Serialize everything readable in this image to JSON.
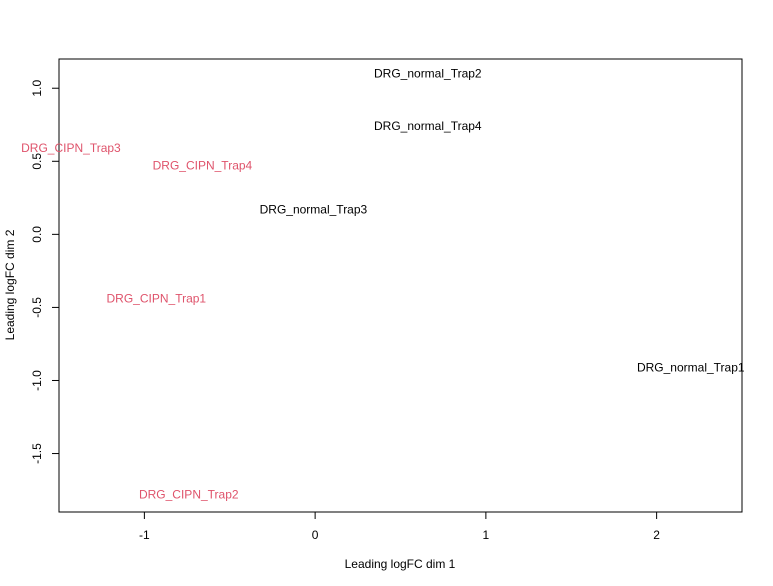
{
  "chart_data": {
    "type": "scatter",
    "title": "",
    "xlabel": "Leading logFC dim 1",
    "ylabel": "Leading logFC dim 2",
    "xlim": [
      -1.5,
      2.5
    ],
    "ylim": [
      -1.9,
      1.2
    ],
    "xticks": [
      -1,
      0,
      1,
      2
    ],
    "yticks": [
      -1.5,
      -1.0,
      -0.5,
      0.0,
      0.5,
      1.0
    ],
    "xtick_labels": [
      "-1",
      "0",
      "1",
      "2"
    ],
    "ytick_labels": [
      "-1.5",
      "-1.0",
      "-0.5",
      "0.0",
      "0.5",
      "1.0"
    ],
    "grid": false,
    "colors": {
      "CIPN": "#df536b",
      "normal": "#000000",
      "frame": "#000000"
    },
    "points": [
      {
        "label": "DRG_normal_Trap2",
        "x": 0.66,
        "y": 1.1,
        "group": "normal"
      },
      {
        "label": "DRG_normal_Trap4",
        "x": 0.66,
        "y": 0.74,
        "group": "normal"
      },
      {
        "label": "DRG_CIPN_Trap3",
        "x": -1.43,
        "y": 0.59,
        "group": "CIPN"
      },
      {
        "label": "DRG_CIPN_Trap4",
        "x": -0.66,
        "y": 0.47,
        "group": "CIPN"
      },
      {
        "label": "DRG_normal_Trap3",
        "x": -0.01,
        "y": 0.17,
        "group": "normal"
      },
      {
        "label": "DRG_CIPN_Trap1",
        "x": -0.93,
        "y": -0.44,
        "group": "CIPN"
      },
      {
        "label": "DRG_normal_Trap1",
        "x": 2.2,
        "y": -0.91,
        "group": "normal"
      },
      {
        "label": "DRG_CIPN_Trap2",
        "x": -0.74,
        "y": -1.78,
        "group": "CIPN"
      }
    ]
  }
}
